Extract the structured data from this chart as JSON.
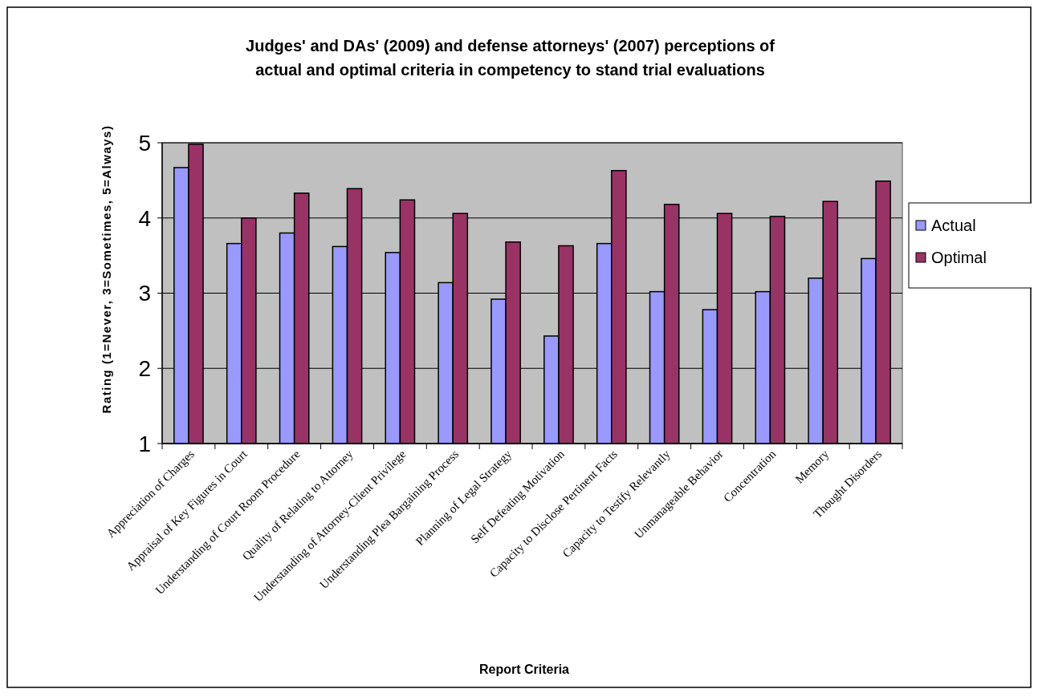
{
  "chart_data": {
    "type": "bar",
    "title": "Judges' and DAs' (2009) and defense attorneys' (2007) perceptions of actual and optimal criteria in competency to stand trial evaluations",
    "xlabel": "Report Criteria",
    "ylabel": "Rating (1=Never, 3=Sometimes, 5=Always)",
    "categories": [
      "Appreciation of Charges",
      "Appraisal of Key Figures in Court",
      "Understanding of Court Room Procedure",
      "Quality of Relating to Attorney",
      "Understanding of Attorney-Client Privilege",
      "Understanding Plea Bargaining Process",
      "Planning of Legal Strategy",
      "Self Defeating Motivation",
      "Capacity to Disclose Pertinent Facts",
      "Capacity to Testify Relevantly",
      "Unmanageable Behavior",
      "Concentration",
      "Memory",
      "Thought Disorders"
    ],
    "series": [
      {
        "name": "Actual",
        "color": "#9999ff",
        "values": [
          4.67,
          3.66,
          3.8,
          3.62,
          3.54,
          3.14,
          2.92,
          2.43,
          3.66,
          3.02,
          2.78,
          3.02,
          3.2,
          3.46
        ]
      },
      {
        "name": "Optimal",
        "color": "#993366",
        "values": [
          4.98,
          4.0,
          4.33,
          4.39,
          4.24,
          4.06,
          3.68,
          3.63,
          4.63,
          4.18,
          4.06,
          4.02,
          4.22,
          4.49
        ]
      }
    ],
    "ylim": [
      1,
      5
    ],
    "yticks": [
      1,
      2,
      3,
      4,
      5
    ],
    "grid": "y",
    "legend": "right"
  }
}
